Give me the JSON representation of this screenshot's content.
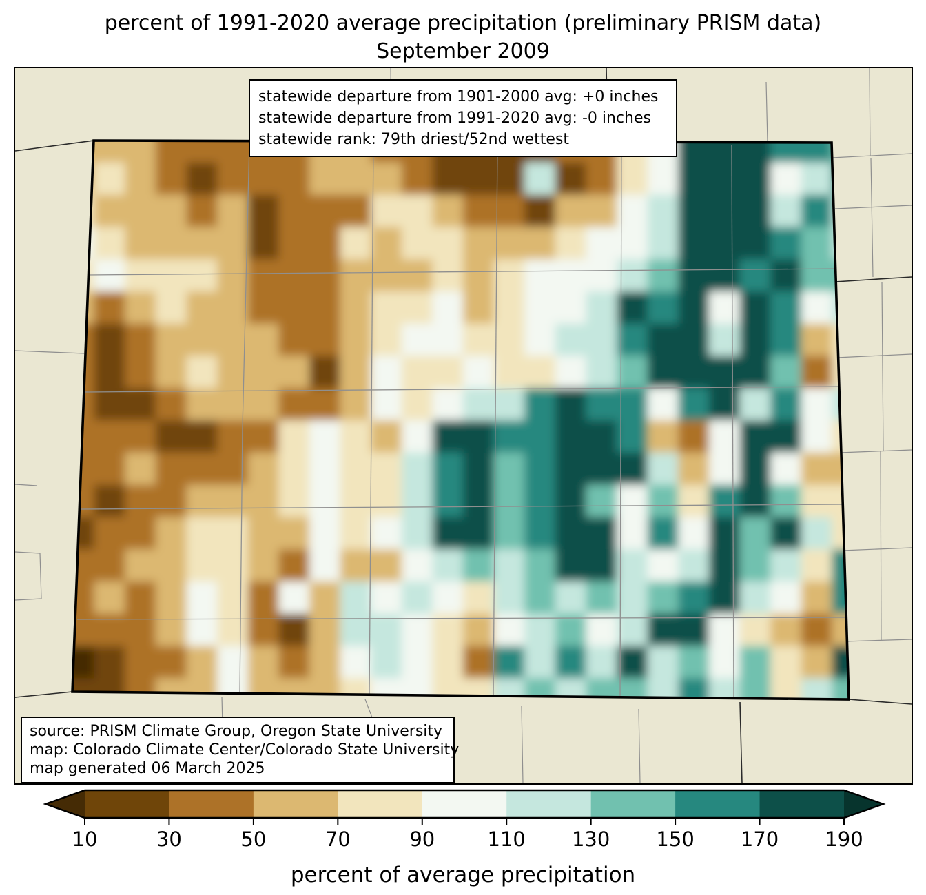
{
  "title": {
    "line1": "percent of 1991-2020 average precipitation (preliminary PRISM data)",
    "line2": "September 2009"
  },
  "stats_box": {
    "lines": [
      "statewide departure from 1901-2000 avg: +0 inches",
      "statewide departure from 1991-2020 avg: -0 inches",
      "statewide rank: 79th driest/52nd wettest"
    ]
  },
  "source_box": {
    "lines": [
      "source: PRISM Climate Group, Oregon State University",
      "map: Colorado Climate Center/Colorado State University",
      "map generated 06 March 2025"
    ]
  },
  "colorbar": {
    "axis_label": "percent of average precipitation",
    "tick_labels": [
      "10",
      "30",
      "50",
      "70",
      "90",
      "110",
      "130",
      "150",
      "170",
      "190"
    ],
    "under_color": "#452B05",
    "over_color": "#07342D",
    "segment_colors": [
      "#6F4509",
      "#AD7228",
      "#DCB871",
      "#F2E5BD",
      "#F3F8F2",
      "#C5E7DE",
      "#71C1AF",
      "#26887F",
      "#0D5049"
    ]
  },
  "map": {
    "region": "Colorado",
    "background_color": "#EAE7D2",
    "state_border_color": "#000000",
    "county_line_color": "#8F8F8F",
    "outside_border_color": "#2A2A2A",
    "value_bins": [
      "<10",
      "10-30",
      "30-50",
      "50-70",
      "70-90",
      "90-110",
      "110-130",
      "130-150",
      "150-170",
      "170-190",
      ">190"
    ],
    "grid_legend": "digits 0-9 = value bins from <10 (0) to 170-190 (9); rows north to south, cols west to east",
    "grid_rows": [
      "33322222332211112245999887",
      "34321222333211161245999568",
      "43332312224432213356999686",
      "54333312243443334556999876",
      "45444322233343455567998977",
      "32343322234453455698959856",
      "21233332234554456689969834",
      "21234333135445445679999724",
      "21123332235456689885896856",
      "22211224543599889983259954",
      "22322234544689789996359533",
      "21223334544689789757489744",
      "12234433545699789958597964",
      "22334432533567679965697648",
      "23235425365654676767896538",
      "22235421366543567569954323",
      "01223532356542868696757439",
      "11233533345544676776867467"
    ]
  }
}
